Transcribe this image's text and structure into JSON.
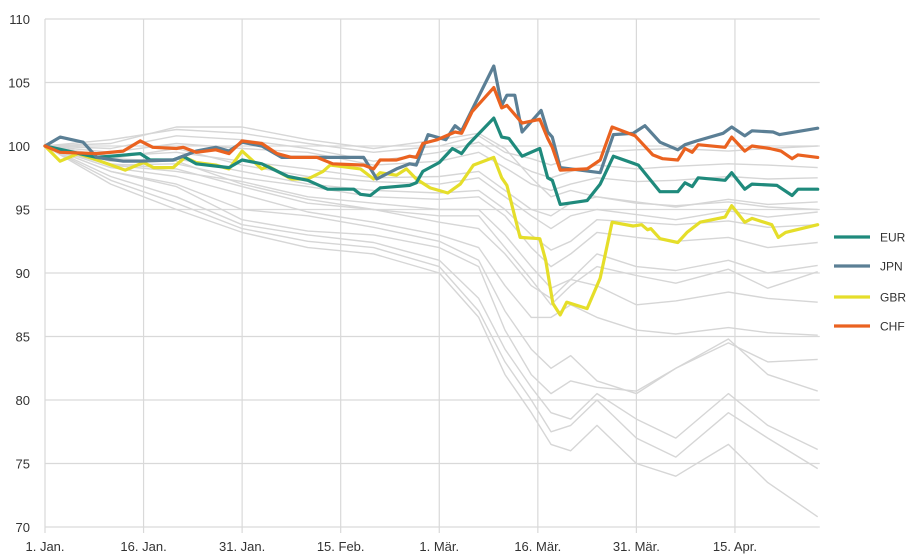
{
  "chart_data": {
    "type": "line",
    "title": "",
    "xlabel": "",
    "ylabel": "",
    "x_unit": "days since 1. Jan.",
    "xlim": [
      0,
      117.6
    ],
    "ylim": [
      70,
      110
    ],
    "grid": true,
    "legend_position": "right",
    "y_ticks": [
      70,
      75,
      80,
      85,
      90,
      95,
      100,
      105,
      110
    ],
    "x_ticks": [
      {
        "day": 0,
        "label": "1. Jan."
      },
      {
        "day": 15,
        "label": "16. Jan."
      },
      {
        "day": 30,
        "label": "31. Jan."
      },
      {
        "day": 45,
        "label": "15. Feb."
      },
      {
        "day": 60,
        "label": "1. Mär."
      },
      {
        "day": 75,
        "label": "16. Mär."
      },
      {
        "day": 90,
        "label": "31. Mär."
      },
      {
        "day": 105,
        "label": "15. Apr."
      }
    ],
    "highlight_series": [
      {
        "name": "EUR",
        "color": "#1f8a7c",
        "points": [
          [
            0,
            100
          ],
          [
            7.9,
            99.1
          ],
          [
            14.5,
            99.4
          ],
          [
            16,
            98.9
          ],
          [
            19.5,
            98.9
          ],
          [
            21,
            99.2
          ],
          [
            23,
            98.6
          ],
          [
            28,
            98.3
          ],
          [
            30,
            98.9
          ],
          [
            33,
            98.6
          ],
          [
            37,
            97.6
          ],
          [
            40,
            97.3
          ],
          [
            43,
            96.6
          ],
          [
            47,
            96.6
          ],
          [
            48,
            96.2
          ],
          [
            49.5,
            96.1
          ],
          [
            51,
            96.7
          ],
          [
            55.5,
            96.9
          ],
          [
            56.5,
            97.1
          ],
          [
            57.5,
            98.0
          ],
          [
            60,
            98.7
          ],
          [
            62,
            99.8
          ],
          [
            63.4,
            99.4
          ],
          [
            64.4,
            100.1
          ],
          [
            68.3,
            102.2
          ],
          [
            69.5,
            100.7
          ],
          [
            70.6,
            100.6
          ],
          [
            72.6,
            99.2
          ],
          [
            75.3,
            99.8
          ],
          [
            76.5,
            97.5
          ],
          [
            77.2,
            97.3
          ],
          [
            78.4,
            95.4
          ],
          [
            82.5,
            95.7
          ],
          [
            84.5,
            97.0
          ],
          [
            86.5,
            99.2
          ],
          [
            90.3,
            98.5
          ],
          [
            93.6,
            96.4
          ],
          [
            96.3,
            96.4
          ],
          [
            97.4,
            97.1
          ],
          [
            98.5,
            96.8
          ],
          [
            99.4,
            97.5
          ],
          [
            103.5,
            97.3
          ],
          [
            104.5,
            97.9
          ],
          [
            106.5,
            96.6
          ],
          [
            107.6,
            97.0
          ],
          [
            111.4,
            96.9
          ],
          [
            113.7,
            96.1
          ],
          [
            114.6,
            96.6
          ],
          [
            117.6,
            96.6
          ]
        ]
      },
      {
        "name": "JPN",
        "color": "#5b7f95",
        "points": [
          [
            0,
            100
          ],
          [
            2.3,
            100.7
          ],
          [
            5.8,
            100.3
          ],
          [
            7.9,
            99.1
          ],
          [
            11.9,
            98.8
          ],
          [
            14.5,
            98.8
          ],
          [
            19.5,
            98.9
          ],
          [
            23,
            99.6
          ],
          [
            26,
            99.9
          ],
          [
            28,
            99.6
          ],
          [
            30,
            100.3
          ],
          [
            33,
            100.0
          ],
          [
            36,
            99.1
          ],
          [
            38.5,
            99.1
          ],
          [
            43,
            99.1
          ],
          [
            48.5,
            99.1
          ],
          [
            50.5,
            97.4
          ],
          [
            53.5,
            98.2
          ],
          [
            55.5,
            98.6
          ],
          [
            56.5,
            98.5
          ],
          [
            58.3,
            100.9
          ],
          [
            61,
            100.5
          ],
          [
            62.4,
            101.6
          ],
          [
            63.4,
            101.2
          ],
          [
            68.3,
            106.3
          ],
          [
            69.5,
            103.2
          ],
          [
            70.3,
            104.0
          ],
          [
            71.5,
            104.0
          ],
          [
            72.6,
            101.1
          ],
          [
            75.5,
            102.8
          ],
          [
            76.5,
            101.1
          ],
          [
            77.2,
            100.7
          ],
          [
            78.4,
            98.3
          ],
          [
            84.5,
            97.9
          ],
          [
            86.5,
            100.9
          ],
          [
            89.5,
            101.0
          ],
          [
            91.3,
            101.6
          ],
          [
            93.6,
            100.3
          ],
          [
            96.3,
            99.7
          ],
          [
            97.4,
            100.1
          ],
          [
            99.2,
            100.4
          ],
          [
            103.2,
            101.0
          ],
          [
            104.5,
            101.5
          ],
          [
            106.5,
            100.8
          ],
          [
            107.6,
            101.2
          ],
          [
            110.8,
            101.1
          ],
          [
            111.8,
            100.9
          ],
          [
            117.6,
            101.4
          ]
        ]
      },
      {
        "name": "GBR",
        "color": "#e5de2a",
        "points": [
          [
            0,
            100
          ],
          [
            2.3,
            98.8
          ],
          [
            5,
            99.4
          ],
          [
            7.9,
            98.9
          ],
          [
            12.2,
            98.1
          ],
          [
            15,
            98.7
          ],
          [
            16.5,
            98.3
          ],
          [
            19.5,
            98.3
          ],
          [
            21.3,
            99.1
          ],
          [
            23,
            98.7
          ],
          [
            26,
            98.5
          ],
          [
            28,
            98.2
          ],
          [
            30,
            99.6
          ],
          [
            33,
            98.2
          ],
          [
            34,
            98.4
          ],
          [
            37.5,
            97.4
          ],
          [
            40,
            97.4
          ],
          [
            42.3,
            98.0
          ],
          [
            43.4,
            98.5
          ],
          [
            48,
            98.2
          ],
          [
            50,
            97.4
          ],
          [
            51,
            97.9
          ],
          [
            53.5,
            97.7
          ],
          [
            55,
            98.2
          ],
          [
            56.5,
            97.4
          ],
          [
            58.6,
            96.7
          ],
          [
            61.3,
            96.3
          ],
          [
            63.2,
            97.0
          ],
          [
            65.2,
            98.5
          ],
          [
            68.3,
            99.1
          ],
          [
            69.5,
            97.5
          ],
          [
            70.3,
            96.9
          ],
          [
            72.3,
            92.8
          ],
          [
            75.3,
            92.7
          ],
          [
            76.2,
            91.0
          ],
          [
            77.3,
            87.6
          ],
          [
            78.4,
            86.7
          ],
          [
            79.4,
            87.7
          ],
          [
            82.5,
            87.2
          ],
          [
            84.5,
            89.6
          ],
          [
            86.3,
            94.0
          ],
          [
            89.5,
            93.7
          ],
          [
            90.8,
            93.8
          ],
          [
            91.7,
            93.4
          ],
          [
            92.2,
            93.5
          ],
          [
            93.6,
            92.7
          ],
          [
            96.3,
            92.4
          ],
          [
            97.7,
            93.2
          ],
          [
            99.7,
            94.0
          ],
          [
            103.5,
            94.4
          ],
          [
            104.5,
            95.3
          ],
          [
            106.5,
            94.0
          ],
          [
            107.6,
            94.3
          ],
          [
            110.6,
            93.8
          ],
          [
            111.6,
            92.8
          ],
          [
            112.7,
            93.2
          ],
          [
            117.6,
            93.8
          ]
        ]
      },
      {
        "name": "CHF",
        "color": "#ea6220",
        "points": [
          [
            0,
            100
          ],
          [
            2.3,
            99.5
          ],
          [
            7.9,
            99.4
          ],
          [
            11.9,
            99.6
          ],
          [
            14.5,
            100.4
          ],
          [
            16.4,
            99.9
          ],
          [
            20,
            99.8
          ],
          [
            21,
            99.9
          ],
          [
            23,
            99.5
          ],
          [
            26,
            99.7
          ],
          [
            28,
            99.4
          ],
          [
            30,
            100.4
          ],
          [
            33,
            100.2
          ],
          [
            35.3,
            99.4
          ],
          [
            37.5,
            99.1
          ],
          [
            41.4,
            99.1
          ],
          [
            43.8,
            98.6
          ],
          [
            48.5,
            98.5
          ],
          [
            50,
            98.2
          ],
          [
            51,
            98.9
          ],
          [
            53.5,
            98.9
          ],
          [
            55.5,
            99.2
          ],
          [
            56.5,
            99.1
          ],
          [
            57.5,
            100.2
          ],
          [
            59.7,
            100.5
          ],
          [
            62.4,
            101.1
          ],
          [
            63.4,
            101.0
          ],
          [
            65,
            102.7
          ],
          [
            68.3,
            104.6
          ],
          [
            69.5,
            103.0
          ],
          [
            70.3,
            103.2
          ],
          [
            72.6,
            101.8
          ],
          [
            75.3,
            102.1
          ],
          [
            76.5,
            100.6
          ],
          [
            77.2,
            99.9
          ],
          [
            78.4,
            98.1
          ],
          [
            82.5,
            98.2
          ],
          [
            84.5,
            98.9
          ],
          [
            86.3,
            101.5
          ],
          [
            89.8,
            100.8
          ],
          [
            92.5,
            99.3
          ],
          [
            94,
            99.0
          ],
          [
            96.3,
            98.9
          ],
          [
            97.4,
            99.8
          ],
          [
            98.5,
            99.5
          ],
          [
            99.4,
            100.1
          ],
          [
            103.5,
            99.9
          ],
          [
            104.5,
            100.7
          ],
          [
            106.5,
            99.6
          ],
          [
            107.6,
            100.0
          ],
          [
            110.3,
            99.8
          ],
          [
            112,
            99.6
          ],
          [
            113.7,
            99.0
          ],
          [
            114.6,
            99.3
          ],
          [
            117.6,
            99.1
          ]
        ]
      }
    ],
    "background_days": [
      0,
      10,
      20,
      30,
      40,
      50,
      60,
      66,
      70,
      74,
      77,
      80,
      84,
      90,
      96,
      104,
      110,
      117.6
    ],
    "background_series": [
      [
        100,
        100.5,
        101.3,
        101,
        100.2,
        99.5,
        100,
        100.8,
        99.5,
        99,
        98.5,
        99,
        99.5,
        99.7,
        99.8,
        99.6,
        99.8,
        100.0
      ],
      [
        100,
        99.8,
        100.8,
        100.5,
        99.8,
        98.8,
        99.5,
        100.3,
        99,
        98,
        97.5,
        98,
        98.5,
        98.2,
        98.4,
        98.6,
        98.5,
        98.3
      ],
      [
        100,
        99.5,
        100.2,
        99.8,
        99.5,
        98.5,
        98.8,
        99.5,
        98.3,
        97,
        96.5,
        97,
        97.5,
        97.2,
        97.3,
        97.6,
        97.4,
        97.5
      ],
      [
        100,
        99.2,
        99.5,
        98.8,
        98.2,
        97.5,
        97.6,
        98,
        96.5,
        95,
        94.5,
        95.5,
        96,
        95.6,
        95.2,
        95.8,
        95.4,
        95.6
      ],
      [
        100,
        99,
        99.8,
        98.5,
        97.6,
        97.2,
        97,
        97.5,
        96,
        94.5,
        93.5,
        94.5,
        95,
        94.6,
        94.2,
        94.9,
        94.4,
        94.8
      ],
      [
        100,
        98.8,
        99,
        98,
        97,
        96.5,
        96.3,
        96.5,
        95,
        93,
        91.8,
        92.5,
        94.2,
        94,
        93.8,
        94.1,
        93.6,
        93.8
      ],
      [
        100,
        98.5,
        98.6,
        97.5,
        96.8,
        96,
        95.8,
        96,
        94.5,
        92,
        90.5,
        91.5,
        93.2,
        92.8,
        92.5,
        92.8,
        92,
        92.4
      ],
      [
        100,
        98.5,
        98,
        97.2,
        96,
        95.5,
        95,
        95,
        93,
        90.5,
        88.8,
        89.5,
        91.5,
        90.5,
        90.2,
        91,
        90,
        90.6
      ],
      [
        100,
        99,
        98.8,
        97,
        95.8,
        95,
        94.5,
        94.5,
        92,
        89.5,
        87.5,
        89,
        90.5,
        89.8,
        89.2,
        90.3,
        88.8,
        90.1
      ],
      [
        100,
        98.6,
        98.2,
        96.8,
        95.5,
        95,
        94,
        93.5,
        91.5,
        89,
        88,
        89.5,
        89,
        87.5,
        87.8,
        88.5,
        88,
        87.7
      ],
      [
        100,
        98.3,
        97.6,
        96.2,
        94.8,
        94,
        93,
        92,
        89,
        86.5,
        86.5,
        87.5,
        86.5,
        85.5,
        85.2,
        85.7,
        85.3,
        85.1
      ],
      [
        100,
        98,
        97,
        95,
        94.5,
        93.6,
        92.5,
        91,
        87,
        84,
        82.5,
        83.5,
        81.5,
        80.5,
        82.5,
        84.5,
        83,
        83.2
      ],
      [
        100,
        98,
        96.8,
        94.2,
        93.3,
        93,
        92,
        90.5,
        85.5,
        82,
        80.5,
        81.5,
        81,
        80.7,
        82.5,
        84.8,
        82,
        80.7
      ],
      [
        100,
        97.6,
        96,
        93.8,
        93,
        92.4,
        91,
        88,
        84,
        81,
        79,
        78.5,
        80.5,
        78.5,
        77,
        80.5,
        78,
        76.1
      ],
      [
        100,
        97.3,
        95.5,
        93.5,
        92.5,
        92,
        90.5,
        87,
        83,
        80,
        77.5,
        78,
        80,
        77,
        75.5,
        79,
        77,
        74.6
      ],
      [
        100,
        97,
        95,
        93.2,
        92,
        91.5,
        90,
        86.5,
        82,
        79,
        76.5,
        76,
        78,
        75,
        74,
        76.5,
        73.5,
        70.8
      ],
      [
        100,
        100.2,
        101.5,
        101.5,
        100.5,
        99.8,
        100.5,
        101,
        99.8,
        97.5,
        96,
        96.5,
        96,
        95.5,
        95.3,
        95.6,
        95.2,
        95
      ]
    ],
    "legend": [
      "EUR",
      "JPN",
      "GBR",
      "CHF"
    ]
  }
}
